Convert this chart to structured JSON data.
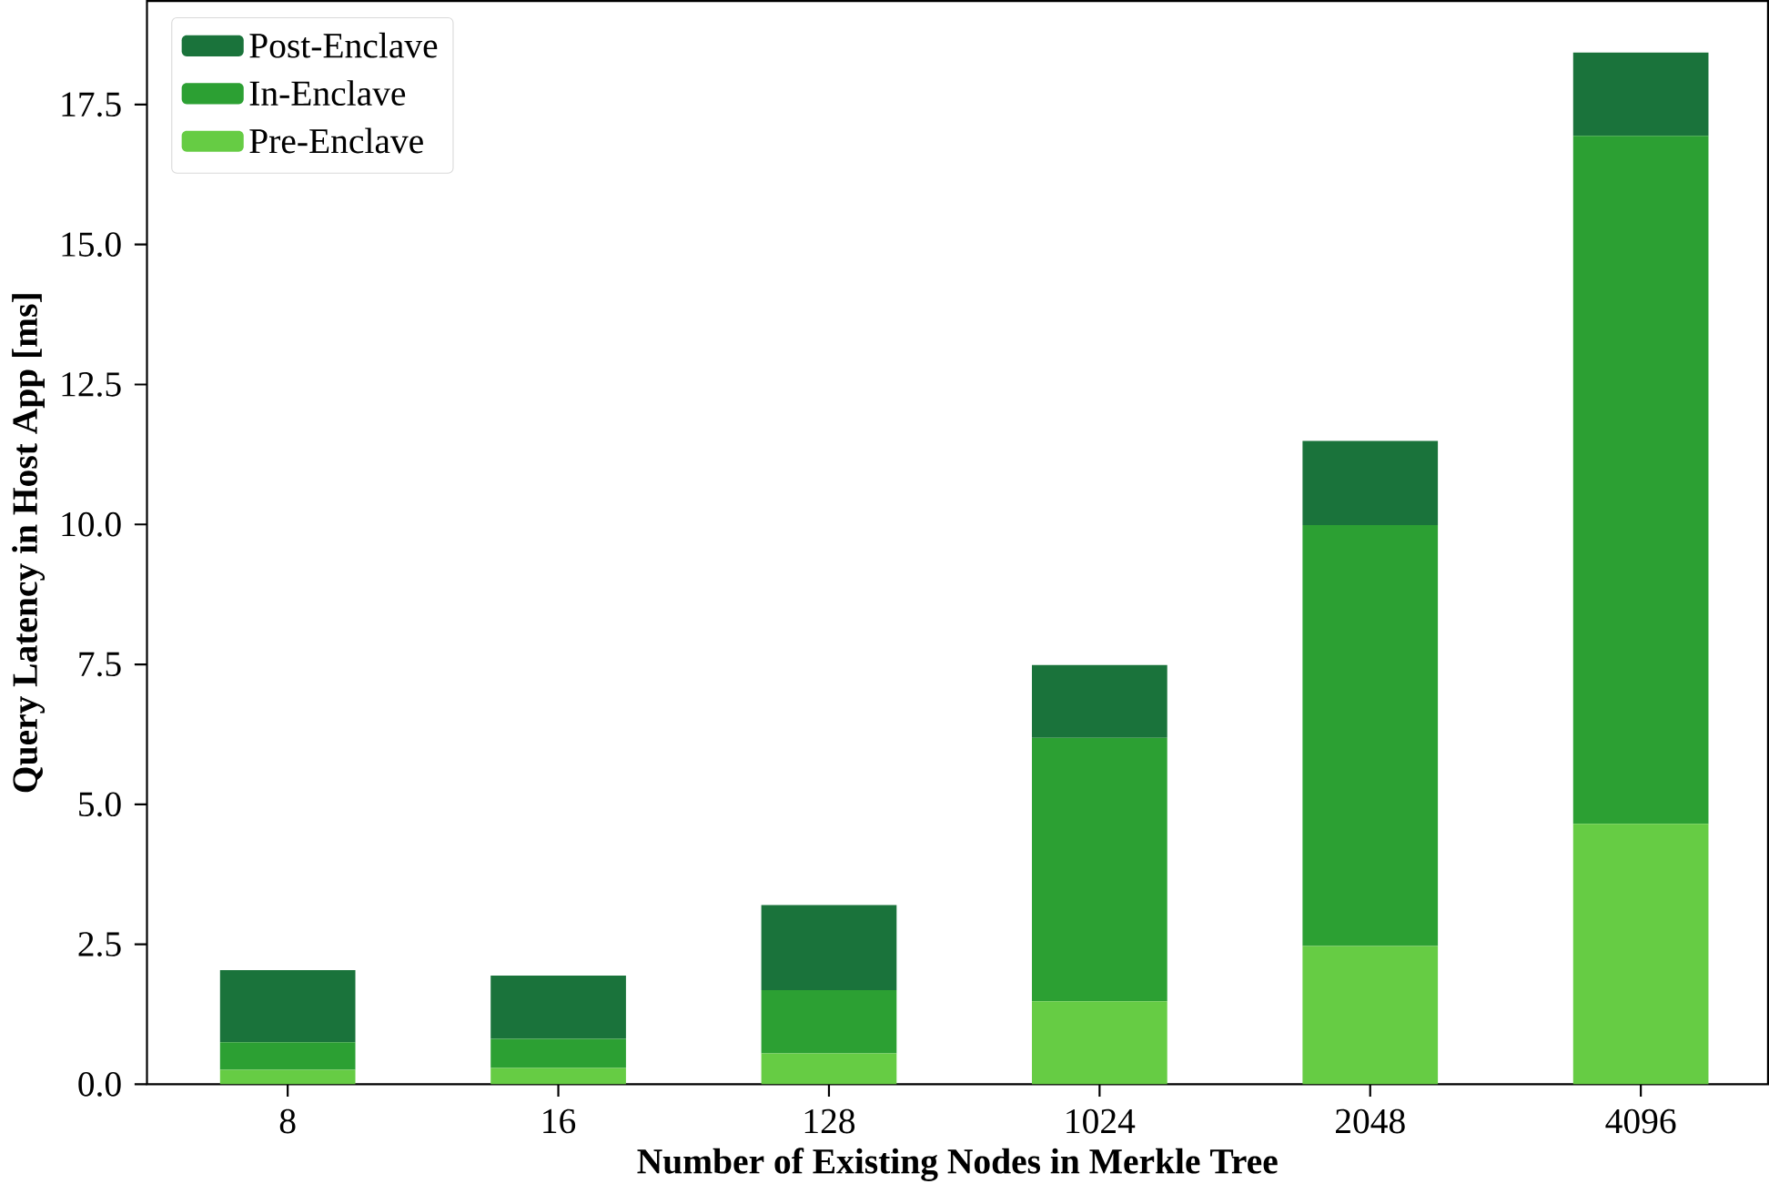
{
  "chart_data": {
    "type": "bar",
    "stacked": true,
    "xlabel": "Number of Existing Nodes in Merkle Tree",
    "ylabel": "Query Latency in Host App [ms]",
    "categories": [
      "8",
      "16",
      "128",
      "1024",
      "2048",
      "4096"
    ],
    "series": [
      {
        "name": "Pre-Enclave",
        "color": "#66cc44",
        "values": [
          0.26,
          0.29,
          0.55,
          1.48,
          2.47,
          4.65
        ]
      },
      {
        "name": "In-Enclave",
        "color": "#2ca033",
        "values": [
          0.49,
          0.52,
          1.13,
          4.71,
          7.52,
          12.29
        ]
      },
      {
        "name": "Post-Enclave",
        "color": "#1a733b",
        "values": [
          1.29,
          1.13,
          1.52,
          1.3,
          1.5,
          1.49
        ]
      }
    ],
    "ylim": [
      0,
      19.35
    ],
    "yticks": [
      {
        "value": 0,
        "label": "0.0"
      },
      {
        "value": 2.5,
        "label": "2.5"
      },
      {
        "value": 5,
        "label": "5.0"
      },
      {
        "value": 7.5,
        "label": "7.5"
      },
      {
        "value": 10,
        "label": "10.0"
      },
      {
        "value": 12.5,
        "label": "12.5"
      },
      {
        "value": 15,
        "label": "15.0"
      },
      {
        "value": 17.5,
        "label": "17.5"
      }
    ],
    "legend": "top left",
    "grid": false
  }
}
